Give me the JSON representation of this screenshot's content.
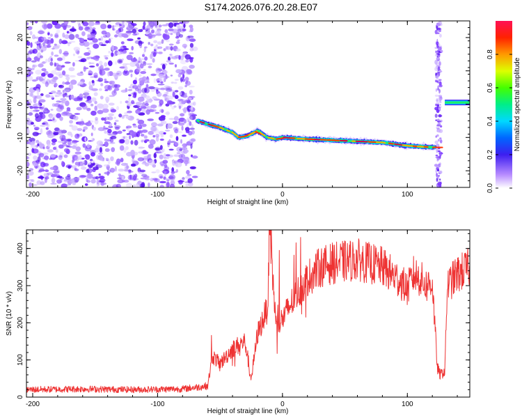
{
  "title": "S174.2026.076.20.28.E07",
  "colors": {
    "snr_line": "#ee3333",
    "axis": "#000000"
  },
  "chart_data": [
    {
      "type": "heatmap",
      "xlabel": "Height of straight line (km)",
      "ylabel": "Frequency (Hz)",
      "xlim": [
        -205,
        150
      ],
      "ylim": [
        -25,
        25
      ],
      "xticks": [
        -200,
        -100,
        0,
        100
      ],
      "yticks": [
        -20,
        -10,
        0,
        10,
        20
      ],
      "colorbar": {
        "label": "Normalized spectral amplitude",
        "range": [
          0,
          1
        ],
        "ticks": [
          0.0,
          0.2,
          0.4,
          0.6,
          0.8
        ]
      },
      "noise_region_km": [
        -205,
        -70
      ],
      "noise_strip_km": [
        123,
        127
      ],
      "ridge": {
        "x": [
          -68,
          -60,
          -50,
          -40,
          -35,
          -28,
          -20,
          -12,
          -5,
          0,
          20,
          50,
          80,
          100,
          122
        ],
        "y": [
          -5,
          -6,
          -7,
          -8.5,
          -10,
          -9.5,
          -8,
          -10,
          -10.5,
          -10,
          -10.5,
          -11,
          -11.5,
          -12.5,
          -13
        ]
      },
      "carrier": {
        "x": [
          130,
          150
        ],
        "y": [
          0.5,
          0.5
        ]
      }
    },
    {
      "type": "line",
      "xlabel": "Height of straight line (km)",
      "ylabel": "SNR (10 * v/v)",
      "xlim": [
        -205,
        150
      ],
      "ylim": [
        0,
        450
      ],
      "xticks": [
        -200,
        -100,
        0,
        100
      ],
      "yticks": [
        0,
        100,
        200,
        300,
        400
      ],
      "series": [
        {
          "x": [
            -205,
            -160,
            -120,
            -80,
            -60,
            -56,
            -50,
            -40,
            -30,
            -25,
            -20,
            -12,
            -10,
            -5,
            0,
            10,
            20,
            30,
            40,
            60,
            80,
            95,
            100,
            105,
            110,
            115,
            120,
            124,
            126,
            130,
            132,
            140,
            150
          ],
          "y": [
            20,
            22,
            20,
            22,
            30,
            110,
            90,
            130,
            150,
            50,
            170,
            240,
            430,
            190,
            210,
            270,
            320,
            350,
            360,
            370,
            350,
            310,
            290,
            330,
            320,
            300,
            310,
            80,
            60,
            70,
            300,
            330,
            350
          ]
        }
      ]
    }
  ]
}
